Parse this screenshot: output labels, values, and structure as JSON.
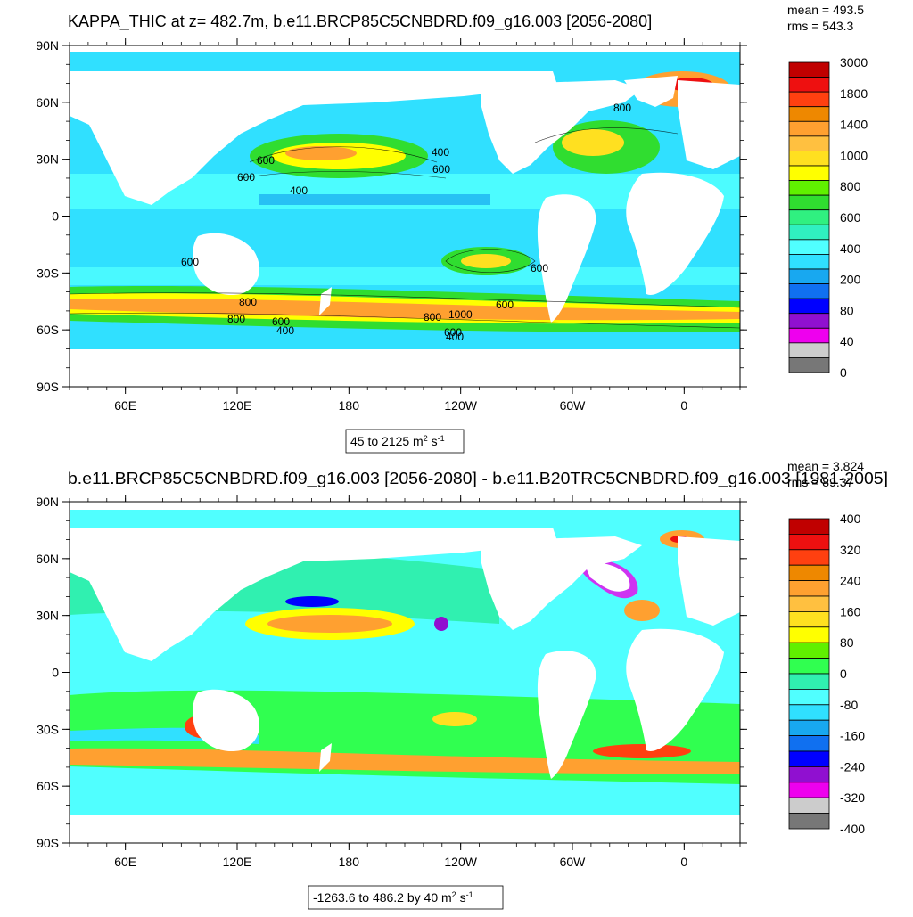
{
  "panels": [
    {
      "title": "KAPPA_THIC at z= 482.7m, b.e11.BRCP85C5CNBDRD.f09_g16.003 [2056-2080]",
      "mean_label": "mean = 493.5",
      "rms_label": "rms = 543.3",
      "range_caption": {
        "text": "45 to 2125 m",
        "sup1": "2",
        "mid": " s",
        "sup2": "-1"
      },
      "colorbar_labels": [
        "3000",
        "1800",
        "1400",
        "1000",
        "800",
        "600",
        "400",
        "200",
        "80",
        "40",
        "0"
      ],
      "colorbar_colors": [
        "#c00000",
        "#ee1010",
        "#ff4010",
        "#ee8800",
        "#ffa030",
        "#ffc040",
        "#ffe020",
        "#ffff00",
        "#60f000",
        "#30dd30",
        "#30f080",
        "#30f0c0",
        "#50ffff",
        "#30e0ff",
        "#18a8f0",
        "#1070f0",
        "#0000ff",
        "#9010d0",
        "#ee00ee",
        "#cccccc",
        "#777777"
      ],
      "contour_labels": [
        "600",
        "600",
        "600",
        "400",
        "400",
        "600",
        "800",
        "600",
        "800",
        "800",
        "600",
        "400",
        "800",
        "1000",
        "600",
        "400",
        "600",
        "600"
      ]
    },
    {
      "title": "b.e11.BRCP85C5CNBDRD.f09_g16.003 [2056-2080] - b.e11.B20TRC5CNBDRD.f09_g16.003 [1981-2005]",
      "mean_label": "mean = 3.824",
      "rms_label": "rms = 89.37",
      "range_caption": {
        "text": "-1263.6 to 486.2 by 40 m",
        "sup1": "2",
        "mid": " s",
        "sup2": "-1"
      },
      "colorbar_labels": [
        "400",
        "320",
        "240",
        "160",
        "80",
        "0",
        "-80",
        "-160",
        "-240",
        "-320",
        "-400"
      ],
      "colorbar_colors": [
        "#c00000",
        "#ee1010",
        "#ff4010",
        "#ee8800",
        "#ffa030",
        "#ffc040",
        "#ffe020",
        "#ffff00",
        "#60f000",
        "#30ff50",
        "#30f0b0",
        "#50ffff",
        "#30e0ff",
        "#18a8f0",
        "#1070f0",
        "#0000ff",
        "#9010d0",
        "#ee00ee",
        "#cccccc",
        "#777777"
      ]
    }
  ],
  "axes": {
    "lat_labels": [
      "90N",
      "60N",
      "30N",
      "0",
      "30S",
      "60S",
      "90S"
    ],
    "lon_labels": [
      "60E",
      "120E",
      "180",
      "120W",
      "60W",
      "0"
    ]
  }
}
